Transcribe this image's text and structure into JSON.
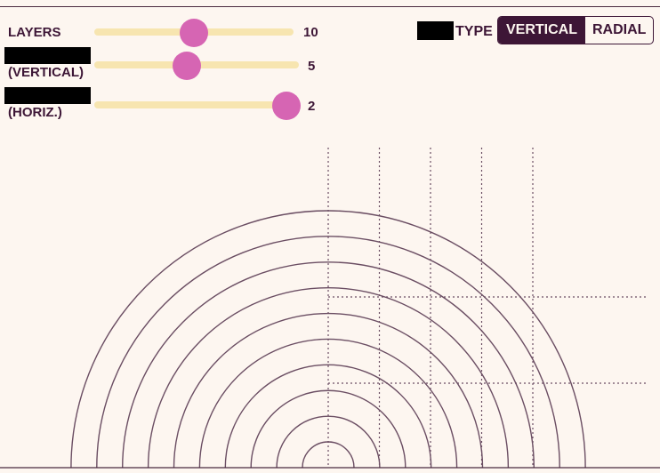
{
  "controls": {
    "layers": {
      "label": "LAYERS",
      "value": "10",
      "fraction": 0.5
    },
    "vertical": {
      "label": "(VERTICAL)",
      "value": "5",
      "fraction": 0.45
    },
    "horizontal": {
      "label": "(HORIZ.)",
      "value": "2",
      "fraction": 1.0
    },
    "type": {
      "label": "TYPE",
      "options": [
        "VERTICAL",
        "RADIAL"
      ],
      "selected": "VERTICAL"
    }
  },
  "colors": {
    "background": "#fdf6f0",
    "text": "#3d1636",
    "track": "#f7e5b0",
    "thumb": "#d665b3",
    "arc": "#6b4e63",
    "grid": "#6b4e63"
  },
  "diagram": {
    "layers": 10,
    "vertical_divisions": 5,
    "horizontal_divisions": 2
  }
}
